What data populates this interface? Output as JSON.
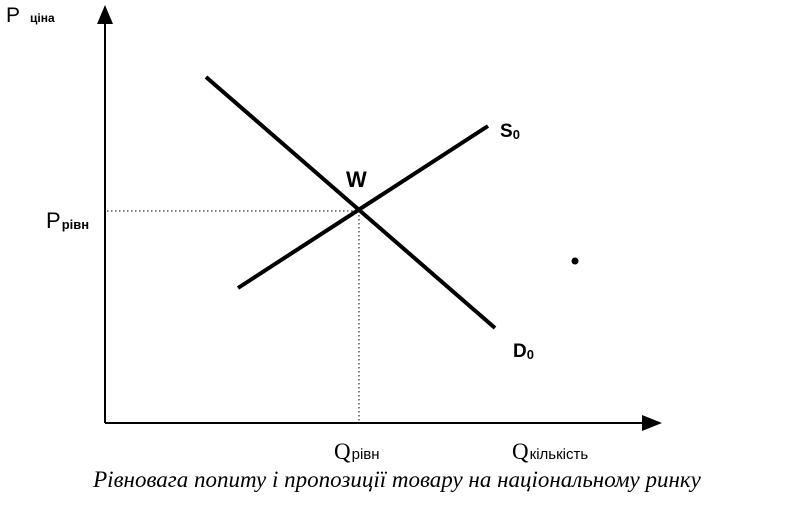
{
  "axes": {
    "y_main": "P",
    "y_sub": "ціна",
    "x_main": "Q",
    "x_sub": "кількість"
  },
  "equilibrium": {
    "point_label": "W",
    "price_main": "P",
    "price_sub": "рівн",
    "quantity_main": "Q",
    "quantity_sub": "рівн"
  },
  "curves": {
    "supply_main": "S",
    "supply_sub": "0",
    "demand_main": "D",
    "demand_sub": "0"
  },
  "caption": "Рівновага попиту і пропозиції товару на національному ринку"
}
